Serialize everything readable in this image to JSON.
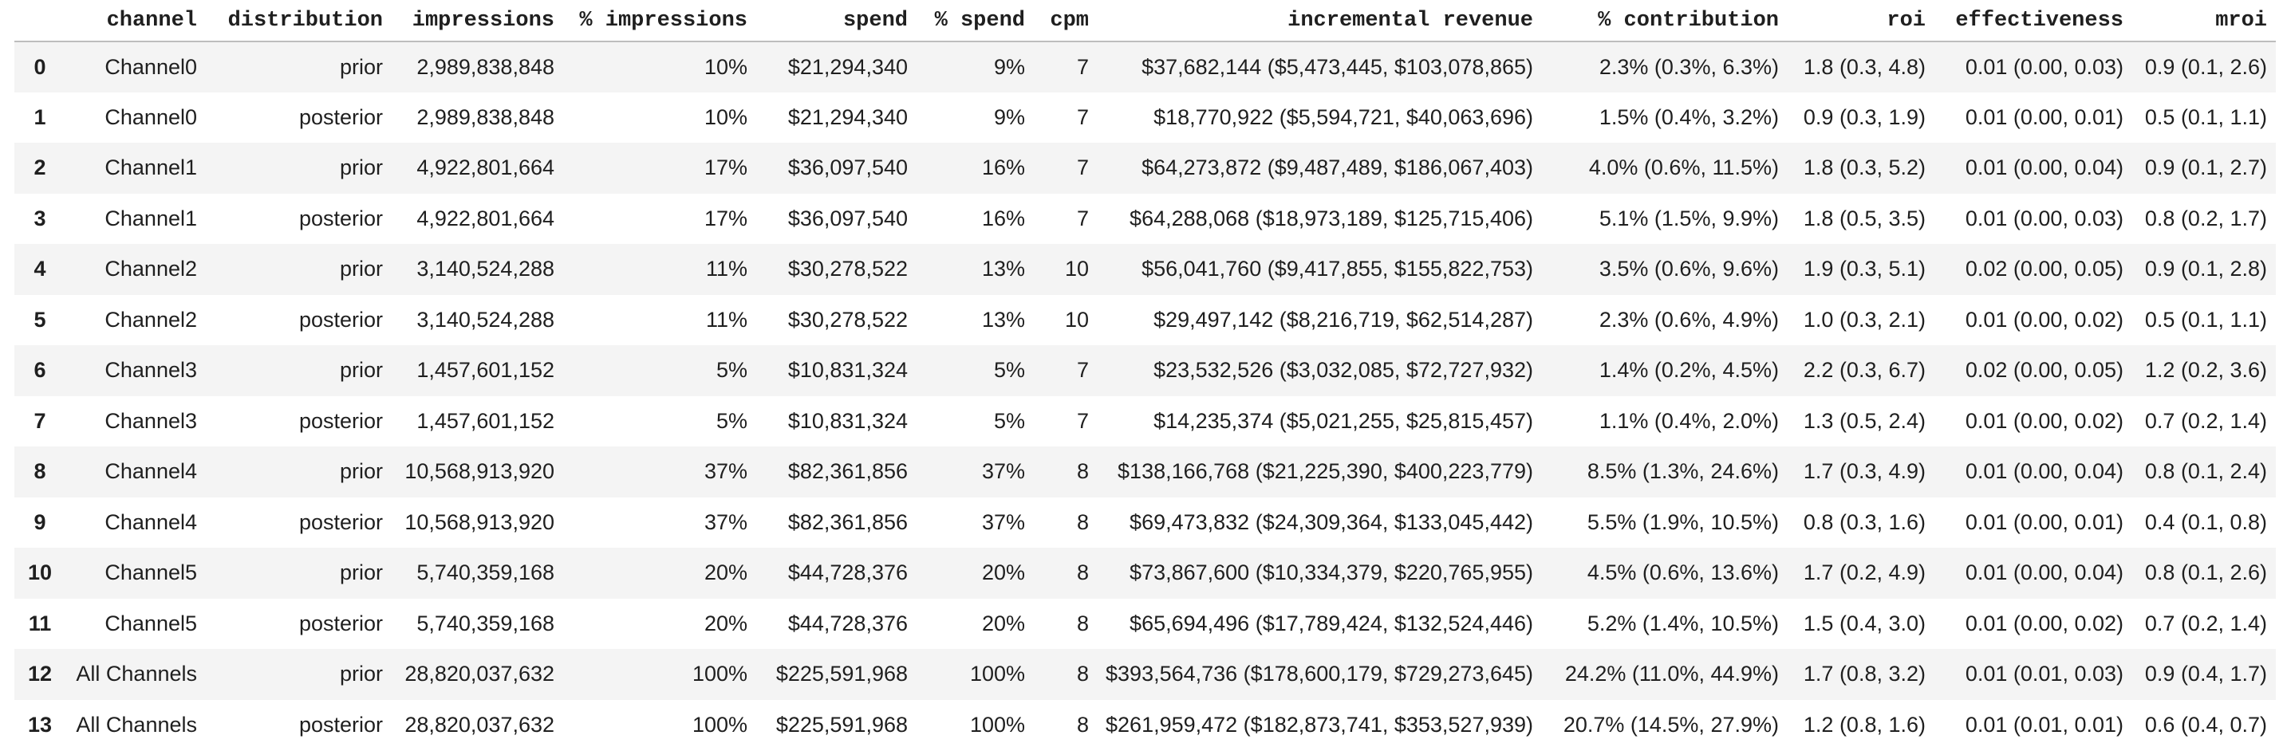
{
  "colors": {
    "background": "#ffffff",
    "stripe": "#f4f4f4",
    "header_border": "#bdbdbd",
    "text": "#1f1f1f"
  },
  "chart_data": {
    "type": "table",
    "columns": [
      "",
      "channel",
      "distribution",
      "impressions",
      "% impressions",
      "spend",
      "% spend",
      "cpm",
      "incremental revenue",
      "% contribution",
      "roi",
      "effectiveness",
      "mroi"
    ],
    "rows": [
      [
        "0",
        "Channel0",
        "prior",
        "2,989,838,848",
        "10%",
        "$21,294,340",
        "9%",
        "7",
        "$37,682,144 ($5,473,445, $103,078,865)",
        "2.3% (0.3%, 6.3%)",
        "1.8 (0.3, 4.8)",
        "0.01 (0.00, 0.03)",
        "0.9 (0.1, 2.6)"
      ],
      [
        "1",
        "Channel0",
        "posterior",
        "2,989,838,848",
        "10%",
        "$21,294,340",
        "9%",
        "7",
        "$18,770,922 ($5,594,721, $40,063,696)",
        "1.5% (0.4%, 3.2%)",
        "0.9 (0.3, 1.9)",
        "0.01 (0.00, 0.01)",
        "0.5 (0.1, 1.1)"
      ],
      [
        "2",
        "Channel1",
        "prior",
        "4,922,801,664",
        "17%",
        "$36,097,540",
        "16%",
        "7",
        "$64,273,872 ($9,487,489, $186,067,403)",
        "4.0% (0.6%, 11.5%)",
        "1.8 (0.3, 5.2)",
        "0.01 (0.00, 0.04)",
        "0.9 (0.1, 2.7)"
      ],
      [
        "3",
        "Channel1",
        "posterior",
        "4,922,801,664",
        "17%",
        "$36,097,540",
        "16%",
        "7",
        "$64,288,068 ($18,973,189, $125,715,406)",
        "5.1% (1.5%, 9.9%)",
        "1.8 (0.5, 3.5)",
        "0.01 (0.00, 0.03)",
        "0.8 (0.2, 1.7)"
      ],
      [
        "4",
        "Channel2",
        "prior",
        "3,140,524,288",
        "11%",
        "$30,278,522",
        "13%",
        "10",
        "$56,041,760 ($9,417,855, $155,822,753)",
        "3.5% (0.6%, 9.6%)",
        "1.9 (0.3, 5.1)",
        "0.02 (0.00, 0.05)",
        "0.9 (0.1, 2.8)"
      ],
      [
        "5",
        "Channel2",
        "posterior",
        "3,140,524,288",
        "11%",
        "$30,278,522",
        "13%",
        "10",
        "$29,497,142 ($8,216,719, $62,514,287)",
        "2.3% (0.6%, 4.9%)",
        "1.0 (0.3, 2.1)",
        "0.01 (0.00, 0.02)",
        "0.5 (0.1, 1.1)"
      ],
      [
        "6",
        "Channel3",
        "prior",
        "1,457,601,152",
        "5%",
        "$10,831,324",
        "5%",
        "7",
        "$23,532,526 ($3,032,085, $72,727,932)",
        "1.4% (0.2%, 4.5%)",
        "2.2 (0.3, 6.7)",
        "0.02 (0.00, 0.05)",
        "1.2 (0.2, 3.6)"
      ],
      [
        "7",
        "Channel3",
        "posterior",
        "1,457,601,152",
        "5%",
        "$10,831,324",
        "5%",
        "7",
        "$14,235,374 ($5,021,255, $25,815,457)",
        "1.1% (0.4%, 2.0%)",
        "1.3 (0.5, 2.4)",
        "0.01 (0.00, 0.02)",
        "0.7 (0.2, 1.4)"
      ],
      [
        "8",
        "Channel4",
        "prior",
        "10,568,913,920",
        "37%",
        "$82,361,856",
        "37%",
        "8",
        "$138,166,768 ($21,225,390, $400,223,779)",
        "8.5% (1.3%, 24.6%)",
        "1.7 (0.3, 4.9)",
        "0.01 (0.00, 0.04)",
        "0.8 (0.1, 2.4)"
      ],
      [
        "9",
        "Channel4",
        "posterior",
        "10,568,913,920",
        "37%",
        "$82,361,856",
        "37%",
        "8",
        "$69,473,832 ($24,309,364, $133,045,442)",
        "5.5% (1.9%, 10.5%)",
        "0.8 (0.3, 1.6)",
        "0.01 (0.00, 0.01)",
        "0.4 (0.1, 0.8)"
      ],
      [
        "10",
        "Channel5",
        "prior",
        "5,740,359,168",
        "20%",
        "$44,728,376",
        "20%",
        "8",
        "$73,867,600 ($10,334,379, $220,765,955)",
        "4.5% (0.6%, 13.6%)",
        "1.7 (0.2, 4.9)",
        "0.01 (0.00, 0.04)",
        "0.8 (0.1, 2.6)"
      ],
      [
        "11",
        "Channel5",
        "posterior",
        "5,740,359,168",
        "20%",
        "$44,728,376",
        "20%",
        "8",
        "$65,694,496 ($17,789,424, $132,524,446)",
        "5.2% (1.4%, 10.5%)",
        "1.5 (0.4, 3.0)",
        "0.01 (0.00, 0.02)",
        "0.7 (0.2, 1.4)"
      ],
      [
        "12",
        "All Channels",
        "prior",
        "28,820,037,632",
        "100%",
        "$225,591,968",
        "100%",
        "8",
        "$393,564,736 ($178,600,179, $729,273,645)",
        "24.2% (11.0%, 44.9%)",
        "1.7 (0.8, 3.2)",
        "0.01 (0.01, 0.03)",
        "0.9 (0.4, 1.7)"
      ],
      [
        "13",
        "All Channels",
        "posterior",
        "28,820,037,632",
        "100%",
        "$225,591,968",
        "100%",
        "8",
        "$261,959,472 ($182,873,741, $353,527,939)",
        "20.7% (14.5%, 27.9%)",
        "1.2 (0.8, 1.6)",
        "0.01 (0.01, 0.01)",
        "0.6 (0.4, 0.7)"
      ]
    ]
  }
}
